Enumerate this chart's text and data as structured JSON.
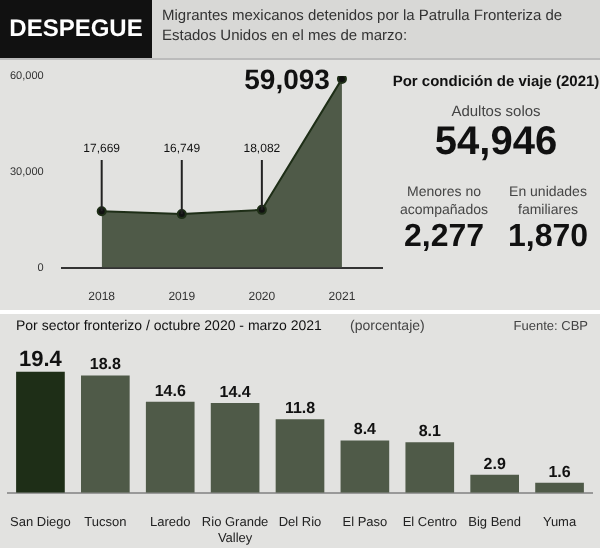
{
  "chart_data": [
    {
      "type": "area",
      "title": "DESPEGUE",
      "subtitle": "Migrantes mexicanos detenidos por la Patrulla Fronteriza de Estados Unidos en el mes de marzo:",
      "categories": [
        "2018",
        "2019",
        "2020",
        "2021"
      ],
      "values": [
        17669,
        16749,
        18082,
        59093
      ],
      "value_labels": [
        "17,669",
        "16,749",
        "18,082",
        "59,093"
      ],
      "color": "#4f5a48",
      "ylim": [
        0,
        60000
      ],
      "yticks": [
        {
          "value": 0,
          "label": "0"
        },
        {
          "value": 30000,
          "label": "30,000"
        },
        {
          "value": 60000,
          "label": "60,000"
        }
      ],
      "grid": false,
      "legend": false
    },
    {
      "type": "other",
      "title": "Por condición de viaje (2021)",
      "annotations": [
        "Adultos solos",
        "54,946",
        "Menores no acompañados",
        "2,277",
        "En unidades familiares",
        "1,870"
      ]
    },
    {
      "type": "bar",
      "title": "Por sector fronterizo / octubre 2020 - marzo 2021",
      "subtitle": "(porcentaje)",
      "categories": [
        "San Diego",
        "Tucson",
        "Laredo",
        "Rio Grande Valley",
        "Del Rio",
        "El Paso",
        "El Centro",
        "Big Bend",
        "Yuma"
      ],
      "values": [
        19.4,
        18.8,
        14.6,
        14.4,
        11.8,
        8.4,
        8.1,
        2.9,
        1.6
      ],
      "colors": [
        "#1e2e17",
        "#4f5a48",
        "#4f5a48",
        "#4f5a48",
        "#4f5a48",
        "#4f5a48",
        "#4f5a48",
        "#4f5a48",
        "#4f5a48"
      ],
      "data_labels": true,
      "grid": false,
      "legend": false,
      "annotations": [
        "Fuente: CBP"
      ]
    }
  ]
}
